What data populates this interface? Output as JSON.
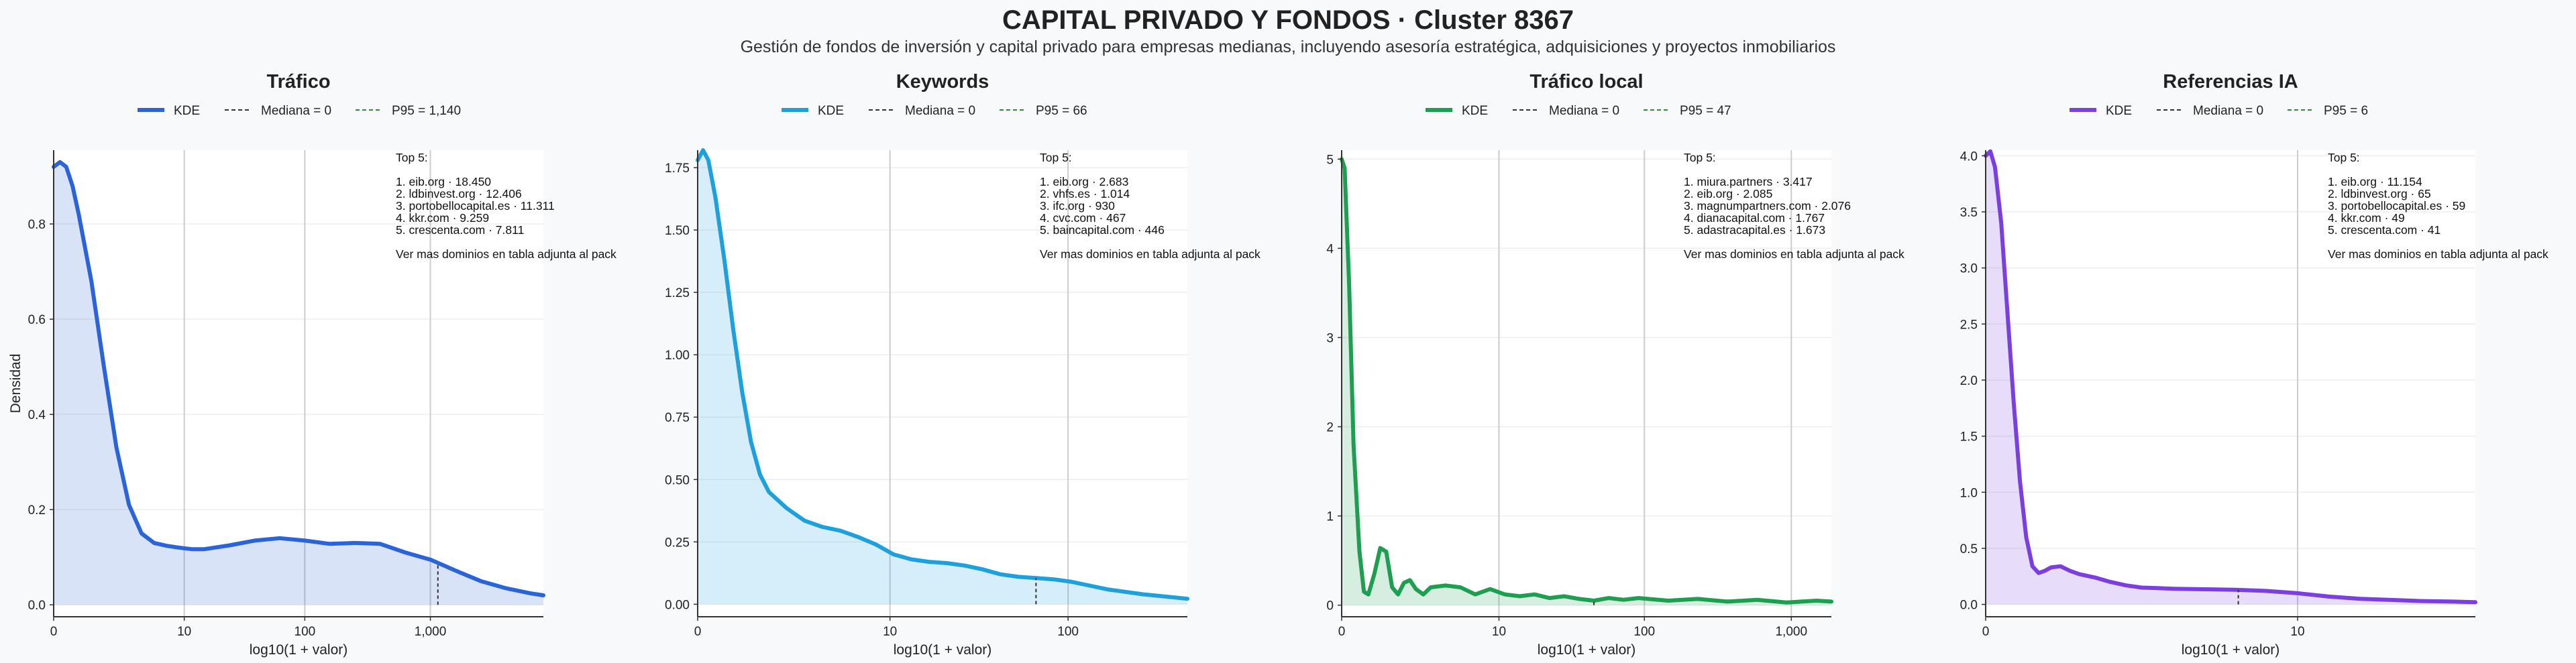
{
  "title": "CAPITAL PRIVADO Y FONDOS · Cluster 8367",
  "subtitle": "Gestión de fondos de inversión y capital privado para empresas medianas, incluyendo asesoría estratégica, adquisiciones y proyectos inmobiliarios",
  "ylabel": "Densidad",
  "xlabel": "log10(1 + valor)",
  "legend_kde": "KDE",
  "footnote": "Ver mas dominios en tabla adjunta al pack",
  "top5_heading": "Top 5:",
  "colors": {
    "trafico": "#2b63d9",
    "keywords": "#1ea0dc",
    "local": "#1e9e50",
    "ia": "#7b3fe0",
    "median": "#333333",
    "p95": "#2e8b3a"
  },
  "chart_data": [
    {
      "type": "area",
      "title": "Tráfico",
      "color_key": "trafico",
      "xlabel": "log10(1 + valor)",
      "ylabel": "Densidad",
      "xlim": [
        0,
        3.9
      ],
      "ylim": [
        -0.025,
        0.955
      ],
      "xticks": [
        {
          "x": 0,
          "label": "0"
        },
        {
          "x": 1.04,
          "label": "10"
        },
        {
          "x": 2.0,
          "label": "100"
        },
        {
          "x": 3.0,
          "label": "1,000"
        }
      ],
      "yticks": [
        {
          "y": 0.0,
          "label": "0.0"
        },
        {
          "y": 0.2,
          "label": "0.2"
        },
        {
          "y": 0.4,
          "label": "0.4"
        },
        {
          "y": 0.6,
          "label": "0.6"
        },
        {
          "y": 0.8,
          "label": "0.8"
        }
      ],
      "median": {
        "label": "Mediana = 0",
        "x": 0
      },
      "p95": {
        "label": "P95 = 1,140",
        "x": 3.06
      },
      "kde": {
        "x": [
          0,
          0.05,
          0.1,
          0.15,
          0.2,
          0.3,
          0.4,
          0.5,
          0.6,
          0.7,
          0.8,
          0.9,
          1.0,
          1.1,
          1.2,
          1.4,
          1.6,
          1.8,
          2.0,
          2.2,
          2.4,
          2.6,
          2.8,
          3.0,
          3.2,
          3.4,
          3.6,
          3.8,
          3.9
        ],
        "y": [
          0.92,
          0.93,
          0.92,
          0.88,
          0.82,
          0.68,
          0.5,
          0.33,
          0.21,
          0.15,
          0.13,
          0.124,
          0.12,
          0.117,
          0.117,
          0.125,
          0.135,
          0.14,
          0.135,
          0.128,
          0.13,
          0.128,
          0.11,
          0.095,
          0.072,
          0.05,
          0.035,
          0.024,
          0.02
        ]
      },
      "top5": [
        "1. eib.org · 18.450",
        "2. ldbinvest.org · 12.406",
        "3. portobellocapital.es · 11.311",
        "4. kkr.com · 9.259",
        "5. crescenta.com · 7.811"
      ]
    },
    {
      "type": "area",
      "title": "Keywords",
      "color_key": "keywords",
      "xlabel": "log10(1 + valor)",
      "xlim": [
        0,
        2.75
      ],
      "ylim": [
        -0.05,
        1.82
      ],
      "xticks": [
        {
          "x": 0,
          "label": "0"
        },
        {
          "x": 1.08,
          "label": "10"
        },
        {
          "x": 2.08,
          "label": "100"
        }
      ],
      "yticks": [
        {
          "y": 0.0,
          "label": "0.00"
        },
        {
          "y": 0.25,
          "label": "0.25"
        },
        {
          "y": 0.5,
          "label": "0.50"
        },
        {
          "y": 0.75,
          "label": "0.75"
        },
        {
          "y": 1.0,
          "label": "1.00"
        },
        {
          "y": 1.25,
          "label": "1.25"
        },
        {
          "y": 1.5,
          "label": "1.50"
        },
        {
          "y": 1.75,
          "label": "1.75"
        }
      ],
      "median": {
        "label": "Mediana = 0",
        "x": 0
      },
      "p95": {
        "label": "P95 = 66",
        "x": 1.9
      },
      "kde": {
        "x": [
          0,
          0.03,
          0.06,
          0.1,
          0.15,
          0.2,
          0.25,
          0.3,
          0.35,
          0.4,
          0.5,
          0.6,
          0.7,
          0.8,
          0.9,
          1.0,
          1.1,
          1.2,
          1.3,
          1.4,
          1.5,
          1.6,
          1.7,
          1.8,
          1.9,
          2.0,
          2.1,
          2.2,
          2.3,
          2.4,
          2.5,
          2.6,
          2.75
        ],
        "y": [
          1.78,
          1.82,
          1.78,
          1.63,
          1.38,
          1.1,
          0.85,
          0.65,
          0.52,
          0.45,
          0.385,
          0.335,
          0.31,
          0.295,
          0.27,
          0.24,
          0.2,
          0.18,
          0.17,
          0.165,
          0.155,
          0.14,
          0.12,
          0.11,
          0.105,
          0.1,
          0.09,
          0.075,
          0.06,
          0.05,
          0.04,
          0.033,
          0.022
        ]
      },
      "top5": [
        "1. eib.org · 2.683",
        "2. vhfs.es · 1.014",
        "3. ifc.org · 930",
        "4. cvc.com · 467",
        "5. baincapital.com · 446"
      ]
    },
    {
      "type": "area",
      "title": "Tráfico local",
      "color_key": "local",
      "xlabel": "log10(1 + valor)",
      "xlim": [
        0,
        3.3
      ],
      "ylim": [
        -0.13,
        5.1
      ],
      "xticks": [
        {
          "x": 0,
          "label": "0"
        },
        {
          "x": 1.06,
          "label": "10"
        },
        {
          "x": 2.04,
          "label": "100"
        },
        {
          "x": 3.03,
          "label": "1,000"
        }
      ],
      "yticks": [
        {
          "y": 0,
          "label": "0"
        },
        {
          "y": 1,
          "label": "1"
        },
        {
          "y": 2,
          "label": "2"
        },
        {
          "y": 3,
          "label": "3"
        },
        {
          "y": 4,
          "label": "4"
        },
        {
          "y": 5,
          "label": "5"
        }
      ],
      "median": {
        "label": "Mediana = 0",
        "x": 0
      },
      "p95": {
        "label": "P95 = 47",
        "x": 1.7
      },
      "kde": {
        "x": [
          0,
          0.02,
          0.05,
          0.08,
          0.12,
          0.15,
          0.18,
          0.22,
          0.26,
          0.3,
          0.34,
          0.38,
          0.42,
          0.46,
          0.5,
          0.55,
          0.6,
          0.7,
          0.8,
          0.9,
          1.0,
          1.1,
          1.2,
          1.3,
          1.4,
          1.5,
          1.6,
          1.7,
          1.8,
          1.9,
          2.0,
          2.2,
          2.4,
          2.6,
          2.8,
          3.0,
          3.2,
          3.3
        ],
        "y": [
          5.0,
          4.9,
          3.6,
          1.8,
          0.6,
          0.15,
          0.12,
          0.35,
          0.64,
          0.6,
          0.2,
          0.12,
          0.25,
          0.28,
          0.18,
          0.12,
          0.2,
          0.22,
          0.2,
          0.12,
          0.18,
          0.12,
          0.1,
          0.12,
          0.08,
          0.1,
          0.07,
          0.05,
          0.08,
          0.06,
          0.08,
          0.05,
          0.07,
          0.04,
          0.06,
          0.03,
          0.05,
          0.04
        ]
      },
      "top5": [
        "1. miura.partners · 3.417",
        "2. eib.org · 2.085",
        "3. magnumpartners.com · 2.076",
        "4. dianacapital.com · 1.767",
        "5. adastracapital.es · 1.673"
      ]
    },
    {
      "type": "area",
      "title": "Referencias IA",
      "color_key": "ia",
      "xlabel": "log10(1 + valor)",
      "xlim": [
        0,
        1.57
      ],
      "ylim": [
        -0.11,
        4.05
      ],
      "xticks": [
        {
          "x": 0,
          "label": "0"
        },
        {
          "x": 1.0,
          "label": "10"
        }
      ],
      "yticks": [
        {
          "y": 0.0,
          "label": "0.0"
        },
        {
          "y": 0.5,
          "label": "0.5"
        },
        {
          "y": 1.0,
          "label": "1.0"
        },
        {
          "y": 1.5,
          "label": "1.5"
        },
        {
          "y": 2.0,
          "label": "2.0"
        },
        {
          "y": 2.5,
          "label": "2.5"
        },
        {
          "y": 3.0,
          "label": "3.0"
        },
        {
          "y": 3.5,
          "label": "3.5"
        },
        {
          "y": 4.0,
          "label": "4.0"
        }
      ],
      "median": {
        "label": "Mediana = 0",
        "x": 0
      },
      "p95": {
        "label": "P95 = 6",
        "x": 0.81
      },
      "kde": {
        "x": [
          0,
          0.015,
          0.03,
          0.05,
          0.07,
          0.09,
          0.11,
          0.13,
          0.15,
          0.17,
          0.19,
          0.21,
          0.24,
          0.27,
          0.3,
          0.35,
          0.4,
          0.45,
          0.5,
          0.55,
          0.6,
          0.7,
          0.8,
          0.9,
          1.0,
          1.1,
          1.2,
          1.3,
          1.4,
          1.5,
          1.57
        ],
        "y": [
          4.0,
          4.04,
          3.9,
          3.4,
          2.6,
          1.8,
          1.1,
          0.6,
          0.34,
          0.28,
          0.3,
          0.33,
          0.34,
          0.3,
          0.27,
          0.24,
          0.2,
          0.17,
          0.15,
          0.145,
          0.14,
          0.135,
          0.13,
          0.12,
          0.1,
          0.07,
          0.05,
          0.04,
          0.03,
          0.025,
          0.02
        ]
      },
      "top5": [
        "1. eib.org · 11.154",
        "2. ldbinvest.org · 65",
        "3. portobellocapital.es · 59",
        "4. kkr.com · 49",
        "5. crescenta.com · 41"
      ]
    }
  ]
}
